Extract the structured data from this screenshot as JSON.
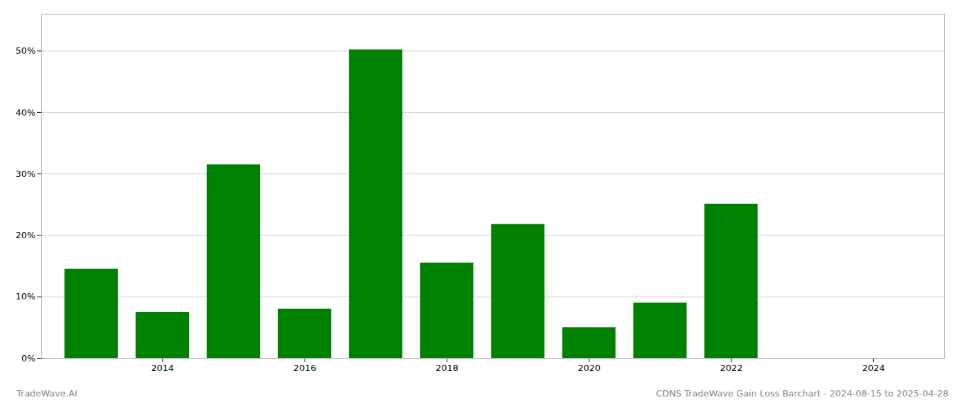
{
  "chart_data": {
    "type": "bar",
    "x": [
      2013,
      2014,
      2015,
      2016,
      2017,
      2018,
      2019,
      2020,
      2021,
      2022,
      2023
    ],
    "values": [
      0.145,
      0.075,
      0.315,
      0.08,
      0.502,
      0.155,
      0.218,
      0.05,
      0.09,
      0.251,
      0.0
    ],
    "color": "#008000",
    "ylim": [
      0,
      0.56
    ],
    "yticks": [
      {
        "value": 0.0,
        "label": "0%"
      },
      {
        "value": 0.1,
        "label": "10%"
      },
      {
        "value": 0.2,
        "label": "20%"
      },
      {
        "value": 0.3,
        "label": "30%"
      },
      {
        "value": 0.4,
        "label": "40%"
      },
      {
        "value": 0.5,
        "label": "50%"
      }
    ],
    "xlim": [
      2012.3,
      2025.0
    ],
    "xticks": [
      2014,
      2016,
      2018,
      2020,
      2022,
      2024
    ],
    "grid": true,
    "annotations": [
      "TradeWave.AI",
      "CDNS TradeWave Gain Loss Barchart - 2024-08-15 to 2025-04-28"
    ]
  }
}
